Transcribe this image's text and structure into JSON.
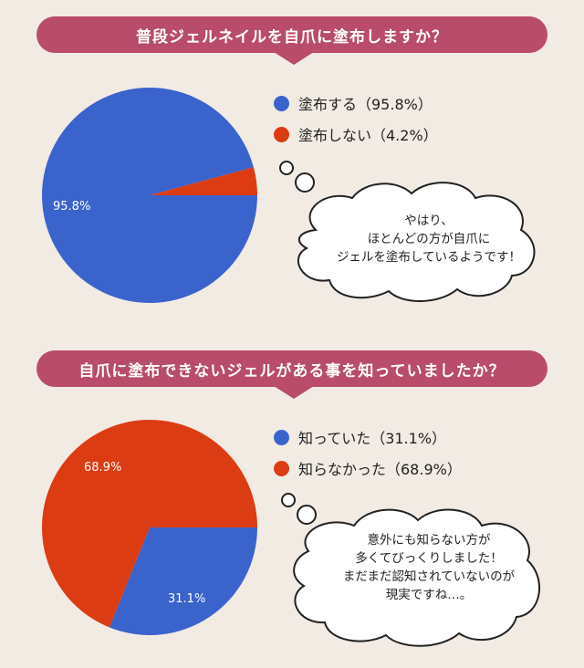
{
  "colors": {
    "blue": "#3a63cc",
    "red": "#dc3c14",
    "banner": "#b94c6a"
  },
  "chart_data": [
    {
      "type": "pie",
      "title": "普段ジェルネイルを自爪に塗布しますか？",
      "series": [
        {
          "name": "塗布する（95.8%）",
          "label": "95.8%",
          "value": 95.8,
          "color": "#3a63cc"
        },
        {
          "name": "塗布しない（4.2%）",
          "label": "",
          "value": 4.2,
          "color": "#dc3c14"
        }
      ],
      "comment": [
        "やはり、",
        "ほとんどの方が自爪に",
        "ジェルを塗布しているようです！"
      ]
    },
    {
      "type": "pie",
      "title": "自爪に塗布できないジェルがある事を知っていましたか？",
      "series": [
        {
          "name": "知っていた（31.1%）",
          "label": "31.1%",
          "value": 31.1,
          "color": "#3a63cc"
        },
        {
          "name": "知らなかった（68.9%）",
          "label": "68.9%",
          "value": 68.9,
          "color": "#dc3c14"
        }
      ],
      "comment": [
        "意外にも知らない方が",
        "多くてびっくりしました！",
        "まだまだ認知されていないのが",
        "現実ですね…。"
      ]
    }
  ]
}
